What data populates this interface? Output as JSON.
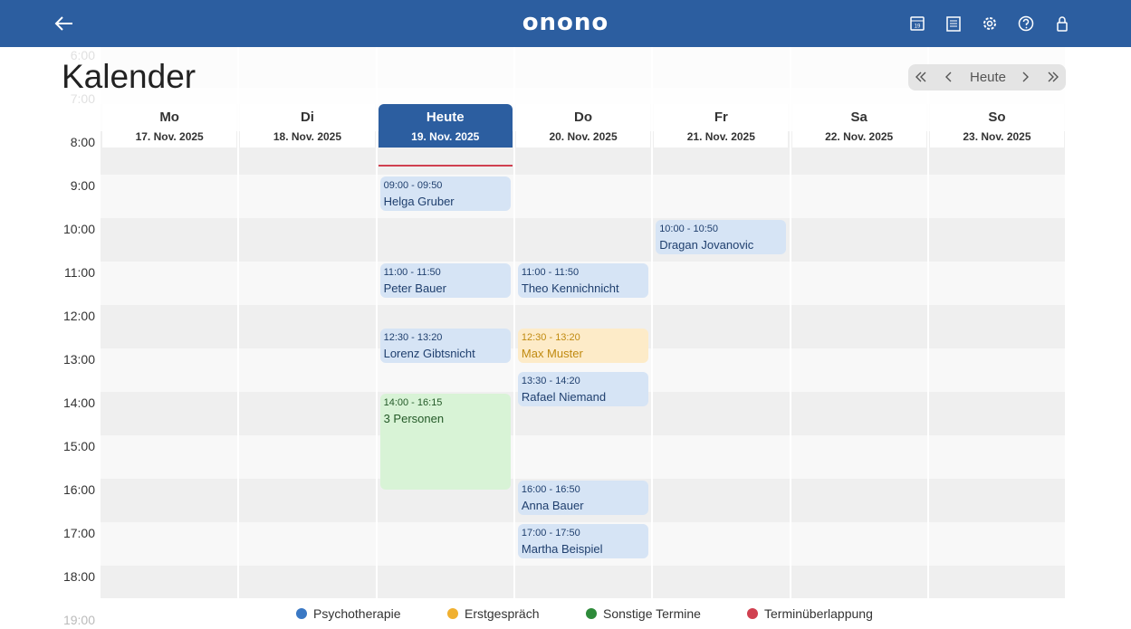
{
  "header": {
    "logo": "onono"
  },
  "page": {
    "title": "Kalender"
  },
  "nav": {
    "today": "Heute"
  },
  "hours": [
    "6:00",
    "7:00",
    "8:00",
    "9:00",
    "10:00",
    "11:00",
    "12:00",
    "13:00",
    "14:00",
    "15:00",
    "16:00",
    "17:00",
    "18:00",
    "19:00"
  ],
  "days": [
    {
      "name": "Mo",
      "date": "17. Nov. 2025",
      "events": []
    },
    {
      "name": "Di",
      "date": "18. Nov. 2025",
      "events": []
    },
    {
      "name": "Heute",
      "date": "19. Nov. 2025",
      "today": true,
      "events": [
        {
          "time": "09:00 - 09:50",
          "label": "Helga Gruber",
          "color": "#3a78c4"
        },
        {
          "time": "11:00 - 11:50",
          "label": "Peter Bauer",
          "color": "#3a78c4"
        },
        {
          "time": "12:30 - 13:20",
          "label": "Lorenz Gibtsnicht",
          "color": "#3a78c4"
        },
        {
          "time": "14:00 - 16:15",
          "label": "3 Personen",
          "color": "#2e8b3a"
        }
      ]
    },
    {
      "name": "Do",
      "date": "20. Nov. 2025",
      "events": [
        {
          "time": "11:00 - 11:50",
          "label": "Theo Kennichnicht",
          "color": "#3a78c4"
        },
        {
          "time": "12:30 - 13:20",
          "label": "Max Muster",
          "color": "#f0b030"
        },
        {
          "time": "13:30 - 14:20",
          "label": "Rafael Niemand",
          "color": "#3a78c4"
        },
        {
          "time": "16:00 - 16:50",
          "label": "Anna Bauer",
          "color": "#3a78c4"
        },
        {
          "time": "17:00 - 17:50",
          "label": "Martha Beispiel",
          "color": "#3a78c4"
        }
      ]
    },
    {
      "name": "Fr",
      "date": "21. Nov. 2025",
      "events": [
        {
          "time": "10:00 - 10:50",
          "label": "Dragan Jovanovic",
          "color": "#3a78c4"
        }
      ]
    },
    {
      "name": "Sa",
      "date": "22. Nov. 2025",
      "events": []
    },
    {
      "name": "So",
      "date": "23. Nov. 2025",
      "events": []
    }
  ],
  "legend": [
    {
      "label": "Psychotherapie",
      "color": "#3a78c4"
    },
    {
      "label": "Erstgespräch",
      "color": "#f0b030"
    },
    {
      "label": "Sonstige Termine",
      "color": "#2e8b3a"
    },
    {
      "label": "Terminüberlappung",
      "color": "#d04050"
    }
  ]
}
